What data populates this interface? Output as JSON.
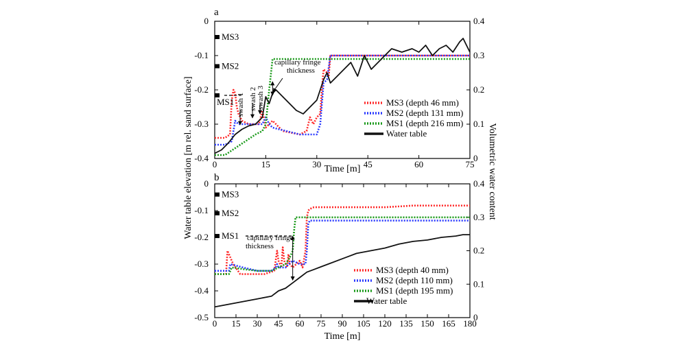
{
  "figure": {
    "ylabel_left": "Water table elevation [m rel. sand surface]",
    "ylabel_right": "Volumetric water content"
  },
  "chart_data": [
    {
      "type": "line",
      "panel": "a",
      "xlabel": "Time [m]",
      "xlim": [
        0,
        75
      ],
      "xticks": [
        0,
        15,
        30,
        45,
        60,
        75
      ],
      "ylim_left": [
        -0.4,
        0
      ],
      "yticks_left": [
        "-0.4",
        "-0.3",
        "-0.2",
        "-0.1",
        "0"
      ],
      "ylim_right": [
        0,
        0.4
      ],
      "yticks_right": [
        "0",
        "0.1",
        "0.2",
        "0.3",
        "0.4"
      ],
      "stations": [
        {
          "label": "MS3",
          "elev": -0.046
        },
        {
          "label": "MS2",
          "elev": -0.131
        },
        {
          "label": "MS1",
          "elev": -0.216
        }
      ],
      "annotations": [
        "swash 1",
        "swash 2",
        "swash 3",
        "capillary fringe thickness"
      ],
      "series": [
        {
          "name": "MS3 (depth 46 mm)",
          "color": "#ff2a2a",
          "style": "dotted",
          "axis": "right",
          "x": [
            0,
            3,
            4.5,
            5,
            5.5,
            6,
            6.5,
            7,
            8,
            10,
            13,
            14,
            15,
            16,
            17,
            20,
            25,
            27,
            28,
            29,
            30,
            31,
            31.5,
            32,
            33,
            33.5,
            34,
            35,
            40,
            50,
            60,
            70,
            75
          ],
          "y": [
            0.06,
            0.06,
            0.07,
            0.17,
            0.2,
            0.19,
            0.15,
            0.13,
            0.11,
            0.1,
            0.1,
            0.14,
            0.09,
            0.1,
            0.11,
            0.08,
            0.07,
            0.08,
            0.12,
            0.1,
            0.12,
            0.13,
            0.2,
            0.26,
            0.25,
            0.24,
            0.3,
            0.3,
            0.3,
            0.3,
            0.3,
            0.3,
            0.3
          ]
        },
        {
          "name": "MS2 (depth 131 mm)",
          "color": "#2a3aff",
          "style": "dotted",
          "axis": "right",
          "x": [
            0,
            3,
            5,
            6,
            7,
            10,
            14,
            15,
            16,
            17,
            25,
            30,
            31,
            32,
            33,
            34,
            40,
            50,
            60,
            70,
            75
          ],
          "y": [
            0.04,
            0.04,
            0.05,
            0.11,
            0.1,
            0.1,
            0.1,
            0.12,
            0.1,
            0.09,
            0.07,
            0.07,
            0.1,
            0.22,
            0.23,
            0.3,
            0.3,
            0.3,
            0.3,
            0.3,
            0.3
          ]
        },
        {
          "name": "MS1 (depth 216 mm)",
          "color": "#1a9a1a",
          "style": "dotted",
          "axis": "right",
          "x": [
            0,
            3,
            6,
            9,
            12,
            14,
            15,
            16,
            17,
            20,
            30,
            40,
            50,
            60,
            70,
            75
          ],
          "y": [
            0.01,
            0.01,
            0.03,
            0.05,
            0.07,
            0.08,
            0.1,
            0.2,
            0.29,
            0.29,
            0.29,
            0.29,
            0.29,
            0.29,
            0.29,
            0.29
          ]
        },
        {
          "name": "Water table",
          "color": "#111111",
          "style": "solid",
          "axis": "left",
          "x": [
            0,
            2,
            4,
            6,
            8,
            10,
            12,
            14,
            15,
            16,
            17,
            18,
            20,
            22,
            24,
            26,
            28,
            30,
            31,
            32,
            33,
            34,
            36,
            38,
            40,
            42,
            44,
            46,
            48,
            50,
            52,
            55,
            58,
            60,
            62,
            64,
            66,
            68,
            70,
            72,
            73,
            74,
            75
          ],
          "y": [
            -0.385,
            -0.375,
            -0.355,
            -0.33,
            -0.315,
            -0.305,
            -0.3,
            -0.28,
            -0.22,
            -0.24,
            -0.21,
            -0.2,
            -0.22,
            -0.24,
            -0.26,
            -0.27,
            -0.25,
            -0.23,
            -0.2,
            -0.17,
            -0.15,
            -0.18,
            -0.16,
            -0.14,
            -0.12,
            -0.16,
            -0.1,
            -0.14,
            -0.12,
            -0.1,
            -0.08,
            -0.09,
            -0.08,
            -0.09,
            -0.07,
            -0.1,
            -0.08,
            -0.07,
            -0.09,
            -0.06,
            -0.05,
            -0.07,
            -0.09
          ]
        }
      ],
      "capillary_fringe": {
        "x": 17,
        "y_from": -0.216,
        "y_to": -0.2
      }
    },
    {
      "type": "line",
      "panel": "b",
      "xlabel": "Time [m]",
      "xlim": [
        0,
        180
      ],
      "xticks": [
        0,
        15,
        30,
        45,
        60,
        75,
        90,
        105,
        120,
        135,
        150,
        165,
        180
      ],
      "ylim_left": [
        -0.5,
        0
      ],
      "yticks_left": [
        "-0.5",
        "-0.4",
        "-0.3",
        "-0.2",
        "-0.1",
        "0"
      ],
      "ylim_right": [
        0,
        0.4
      ],
      "yticks_right": [
        "0",
        "0.1",
        "0.2",
        "0.3",
        "0.4"
      ],
      "stations": [
        {
          "label": "MS3",
          "elev": -0.04
        },
        {
          "label": "MS2",
          "elev": -0.11
        },
        {
          "label": "MS1",
          "elev": -0.195
        }
      ],
      "annotations": [
        "capillary fringe thickness"
      ],
      "series": [
        {
          "name": "MS3 (depth 40 mm)",
          "color": "#ff2a2a",
          "style": "dotted",
          "axis": "right",
          "x": [
            0,
            8,
            9,
            10,
            13,
            18,
            25,
            35,
            42,
            44,
            45,
            47,
            48,
            49,
            51,
            52,
            53,
            55,
            60,
            62,
            64,
            65,
            66,
            67,
            70,
            80,
            100,
            120,
            140,
            160,
            180
          ],
          "y": [
            0.13,
            0.13,
            0.2,
            0.19,
            0.16,
            0.13,
            0.13,
            0.13,
            0.14,
            0.2,
            0.17,
            0.15,
            0.21,
            0.17,
            0.15,
            0.19,
            0.16,
            0.15,
            0.17,
            0.15,
            0.2,
            0.3,
            0.32,
            0.325,
            0.33,
            0.33,
            0.33,
            0.33,
            0.335,
            0.335,
            0.335
          ]
        },
        {
          "name": "MS2 (depth 110 mm)",
          "color": "#2a3aff",
          "style": "dotted",
          "axis": "right",
          "x": [
            0,
            10,
            11,
            20,
            30,
            40,
            43,
            44,
            45,
            50,
            52,
            55,
            60,
            64,
            65,
            66,
            67,
            80,
            100,
            120,
            150,
            180
          ],
          "y": [
            0.14,
            0.14,
            0.16,
            0.15,
            0.14,
            0.14,
            0.15,
            0.16,
            0.15,
            0.15,
            0.16,
            0.17,
            0.16,
            0.16,
            0.2,
            0.28,
            0.29,
            0.29,
            0.29,
            0.29,
            0.29,
            0.29
          ]
        },
        {
          "name": "MS1 (depth 195 mm)",
          "color": "#1a9a1a",
          "style": "dotted",
          "axis": "right",
          "x": [
            0,
            10,
            12,
            20,
            30,
            40,
            45,
            50,
            53,
            55,
            56,
            57,
            60,
            80,
            100,
            130,
            160,
            180
          ],
          "y": [
            0.13,
            0.13,
            0.15,
            0.145,
            0.14,
            0.14,
            0.15,
            0.16,
            0.18,
            0.2,
            0.26,
            0.3,
            0.3,
            0.3,
            0.3,
            0.3,
            0.3,
            0.3
          ]
        },
        {
          "name": "Water table",
          "color": "#111111",
          "style": "solid",
          "axis": "left",
          "x": [
            0,
            10,
            20,
            30,
            40,
            45,
            50,
            55,
            60,
            65,
            70,
            75,
            80,
            90,
            100,
            110,
            120,
            130,
            140,
            150,
            160,
            170,
            175,
            180
          ],
          "y": [
            -0.46,
            -0.45,
            -0.44,
            -0.43,
            -0.42,
            -0.4,
            -0.39,
            -0.37,
            -0.35,
            -0.33,
            -0.32,
            -0.31,
            -0.3,
            -0.28,
            -0.26,
            -0.25,
            -0.24,
            -0.225,
            -0.215,
            -0.21,
            -0.2,
            -0.195,
            -0.19,
            -0.19
          ]
        }
      ],
      "capillary_fringe": {
        "x": 55,
        "y_from": -0.36,
        "y_to": -0.195
      }
    }
  ]
}
